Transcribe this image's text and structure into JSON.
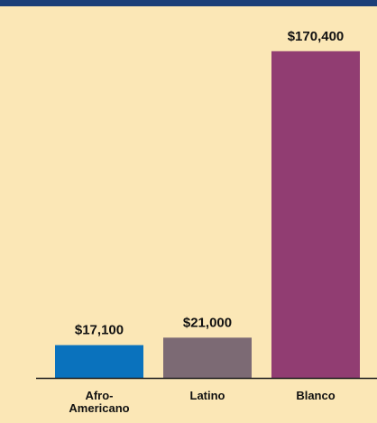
{
  "colors": {
    "header": "#1b3f78",
    "panel": "#fbe7b6",
    "axis": "#1d1d1d",
    "text": "#111111"
  },
  "chart_data": {
    "type": "bar",
    "categories": [
      "Afro-Americano",
      "Latino",
      "Blanco"
    ],
    "category_lines": [
      [
        "Afro-",
        "Americano"
      ],
      [
        "Latino"
      ],
      [
        "Blanco"
      ]
    ],
    "values": [
      17100,
      21000,
      170400
    ],
    "value_labels": [
      "$17,100",
      "$21,000",
      "$170,400"
    ],
    "colors": [
      "#0a72bd",
      "#7c6a74",
      "#913d72"
    ],
    "ylim": [
      0,
      175000
    ],
    "grid": false,
    "legend": "none",
    "title": "",
    "xlabel": "",
    "ylabel": ""
  }
}
